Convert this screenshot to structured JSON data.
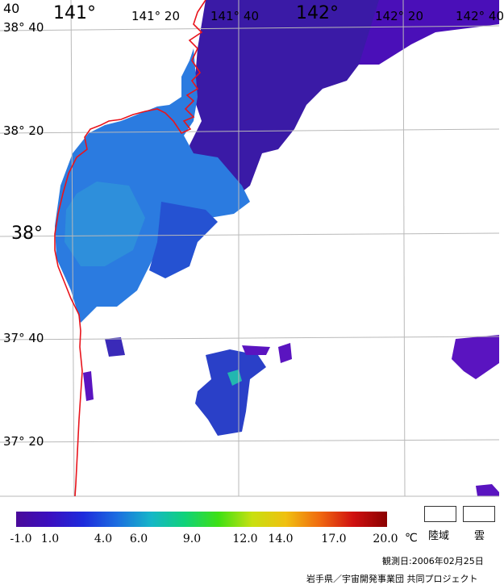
{
  "map": {
    "lon_labels": [
      "141°",
      "141° 20",
      "141° 40",
      "142°",
      "142° 20",
      "142° 40"
    ],
    "lat_labels": [
      "38° 40",
      "38° 20",
      "38°",
      "37° 40",
      "37° 20"
    ],
    "corner_label": "40",
    "colors": {
      "coast": "#e8141c",
      "grid": "#b9b9b9",
      "warm_water": "#3d8fe0",
      "cool_water": "#2e55d6",
      "cold_water": "#5a14c0"
    }
  },
  "colorbar": {
    "colors": [
      "#4a0a9a",
      "#3b0fc0",
      "#1d2bdc",
      "#1c6ee0",
      "#15b6c8",
      "#10d27a",
      "#3ee014",
      "#c8e010",
      "#f0c010",
      "#f06a10",
      "#d01010",
      "#8a0000"
    ],
    "tick_labels": [
      "-1.0",
      "1.0",
      "4.0",
      "6.0",
      "9.0",
      "12.0",
      "14.0",
      "17.0",
      "20.0"
    ],
    "unit": "℃"
  },
  "legend": {
    "land_label": "陸域",
    "cloud_label": "雲"
  },
  "footer": {
    "observation_date": "観測日:2006年02月25日",
    "credit": "岩手県／宇宙開発事業団 共同プロジェクト"
  }
}
